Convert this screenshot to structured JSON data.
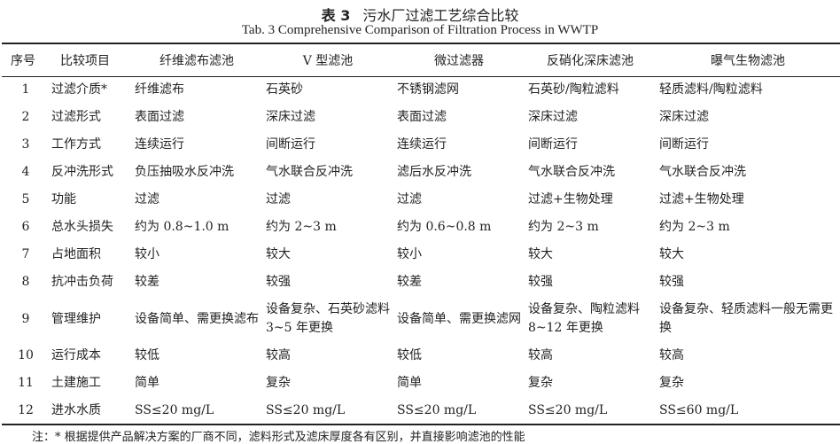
{
  "title_cn_label": "表 3",
  "title_cn": "污水厂过滤工艺综合比较",
  "title_en": "Tab. 3   Comprehensive Comparison of Filtration Process in WWTP",
  "headers": [
    "序号",
    "比较项目",
    "纤维滤布滤池",
    "V 型滤池",
    "微过滤器",
    "反硝化深床滤池",
    "曝气生物滤池"
  ],
  "rows": [
    [
      "1",
      "过滤介质*",
      "纤维滤布",
      "石英砂",
      "不锈钢滤网",
      "石英砂/陶粒滤料",
      "轻质滤料/陶粒滤料"
    ],
    [
      "2",
      "过滤形式",
      "表面过滤",
      "深床过滤",
      "表面过滤",
      "深床过滤",
      "深床过滤"
    ],
    [
      "3",
      "工作方式",
      "连续运行",
      "间断运行",
      "连续运行",
      "间断运行",
      "间断运行"
    ],
    [
      "4",
      "反冲洗形式",
      "负压抽吸水反冲洗",
      "气水联合反冲洗",
      "滤后水反冲洗",
      "气水联合反冲洗",
      "气水联合反冲洗"
    ],
    [
      "5",
      "功能",
      "过滤",
      "过滤",
      "过滤",
      "过滤+生物处理",
      "过滤+生物处理"
    ],
    [
      "6",
      "总水头损失",
      "约为 0.8~1.0 m",
      "约为 2~3 m",
      "约为 0.6~0.8 m",
      "约为 2~3 m",
      "约为 2~3 m"
    ],
    [
      "7",
      "占地面积",
      "较小",
      "较大",
      "较小",
      "较大",
      "较大"
    ],
    [
      "8",
      "抗冲击负荷",
      "较差",
      "较强",
      "较差",
      "较强",
      "较强"
    ],
    [
      "9",
      "管理维护",
      "设备简单、需更换滤布",
      "设备复杂、石英砂滤料 3~5 年更换",
      "设备简单、需更换滤网",
      "设备复杂、陶粒滤料 8~12 年更换",
      "设备复杂、轻质滤料一般无需更换"
    ],
    [
      "10",
      "运行成本",
      "较低",
      "较高",
      "较低",
      "较高",
      "较高"
    ],
    [
      "11",
      "土建施工",
      "简单",
      "复杂",
      "简单",
      "复杂",
      "复杂"
    ],
    [
      "12",
      "进水水质",
      "SS≤20 mg/L",
      "SS≤20 mg/L",
      "SS≤20 mg/L",
      "SS≤20 mg/L",
      "SS≤60 mg/L"
    ]
  ],
  "note": "注：* 根据提供产品解决方案的厂商不同，滤料形式及滤床厚度各有区别，并直接影响滤池的性能"
}
